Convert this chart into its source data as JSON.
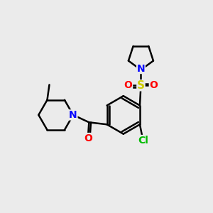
{
  "background_color": "#ebebeb",
  "atom_colors": {
    "C": "#000000",
    "N": "#0000ff",
    "O": "#ff0000",
    "S": "#cccc00",
    "Cl": "#00bb00"
  },
  "bond_color": "#000000",
  "bond_width": 1.8,
  "font_size": 10,
  "fig_size": [
    3.0,
    3.0
  ],
  "dpi": 100
}
